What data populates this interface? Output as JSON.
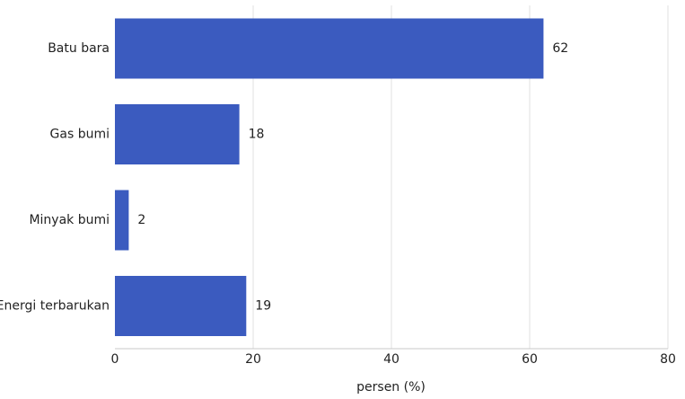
{
  "chart_data": {
    "type": "bar",
    "orientation": "horizontal",
    "title": "",
    "categories": [
      "Batu bara",
      "Gas bumi",
      "Minyak bumi",
      "Energi terbarukan"
    ],
    "values": [
      62,
      18,
      2,
      19
    ],
    "value_labels": [
      "62",
      "18",
      "2",
      "19"
    ],
    "xlabel": "persen (%)",
    "ylabel": "",
    "xlim": [
      0,
      80
    ],
    "xticks": [
      0,
      20,
      40,
      60,
      80
    ],
    "xtick_labels": [
      "0",
      "20",
      "40",
      "60",
      "80"
    ],
    "grid": "vertical",
    "legend": "none",
    "bar_color": "#3b5bbf",
    "grid_color": "#e0e0e0",
    "axis_color": "#c8c8c8"
  }
}
